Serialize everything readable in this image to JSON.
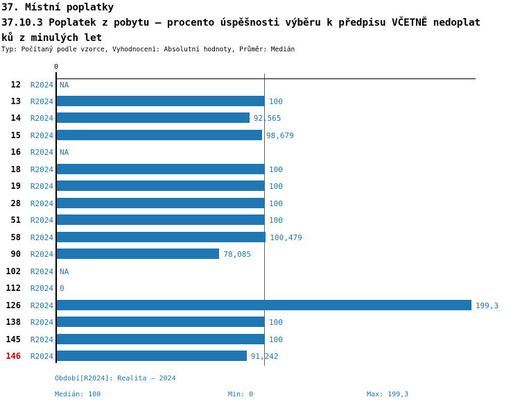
{
  "header": {
    "title_line1": "37. Místní poplatky",
    "title_line2": "37.10.3 Poplatek z pobytu – procento úspěšnosti výběru k předpisu VČETNĚ nedoplat",
    "title_line3": "ků z minulých let",
    "subtitle": "Typ: Počítaný podle vzorce, Vyhodnocení: Absolutní hodnoty, Průměr: Medián"
  },
  "chart_data": {
    "type": "bar",
    "orientation": "horizontal",
    "title": "37.10.3 Poplatek z pobytu – procento úspěšnosti výběru k předpisu VČETNĚ nedoplatků z minulých let",
    "xlabel": "",
    "ylabel": "",
    "xlim": [
      0,
      199.3
    ],
    "x_axis_tick_labels": [
      "0"
    ],
    "grid": false,
    "legend": false,
    "series_label": "R2024",
    "categories": [
      "12",
      "13",
      "14",
      "15",
      "16",
      "18",
      "19",
      "28",
      "51",
      "58",
      "90",
      "102",
      "112",
      "126",
      "138",
      "145",
      "146"
    ],
    "values": [
      null,
      100,
      92.565,
      98.679,
      null,
      100,
      100,
      100,
      100,
      100.479,
      78.085,
      null,
      0,
      199.3,
      100,
      100,
      91.242
    ],
    "value_labels": [
      "NA",
      "100",
      "92,565",
      "98,679",
      "NA",
      "100",
      "100",
      "100",
      "100",
      "100,479",
      "78,085",
      "NA",
      "0",
      "199,3",
      "100",
      "100",
      "91,242"
    ],
    "na_label": "NA",
    "median_line_value": 100,
    "median": 100,
    "min": 0,
    "max": 199.3,
    "highlighted_category": "146"
  },
  "footer": {
    "period_label": "Období[R2024]: Realita – 2024",
    "median_label": "Medián: 100",
    "min_label": "Min: 0",
    "max_label": "Max: 199,3"
  },
  "colors": {
    "bar": "#1f77b4",
    "blue_text": "#1f77b4",
    "median_line": "#1f77b4",
    "highlight_red": "#d40000",
    "axis": "#000000"
  }
}
